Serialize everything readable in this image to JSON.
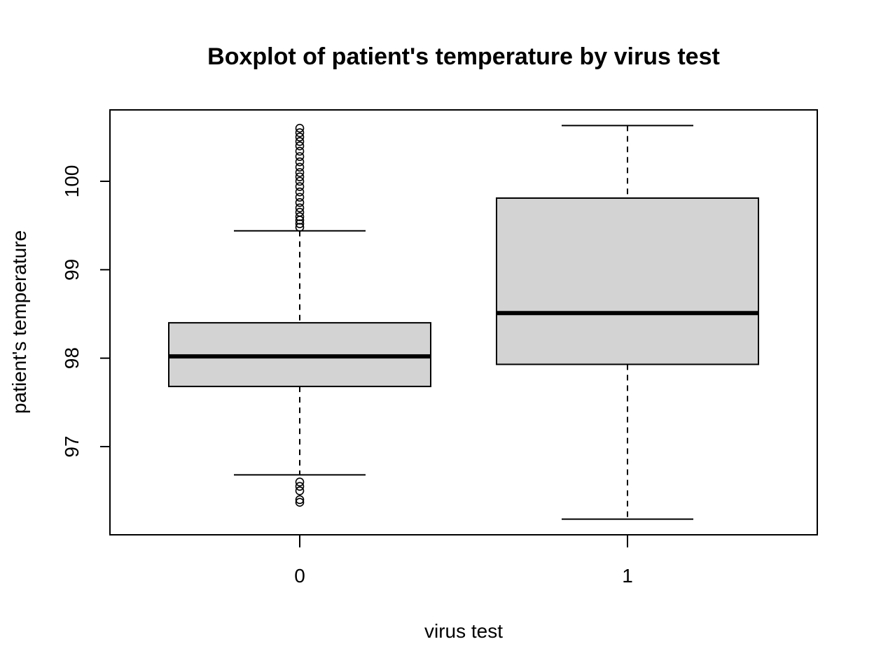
{
  "chart_data": {
    "type": "boxplot",
    "title": "Boxplot of patient's temperature by virus test",
    "xlabel": "virus test",
    "ylabel": "patient's temperature",
    "categories": [
      "0",
      "1"
    ],
    "yticks": [
      97,
      98,
      99,
      100
    ],
    "ylim": [
      96.0,
      100.8
    ],
    "grid": false,
    "legend": "none",
    "colors": {
      "box_fill": "#d3d3d3",
      "stroke": "#000000"
    },
    "boxes": [
      {
        "category": "0",
        "whisker_low": 96.68,
        "q1": 97.68,
        "median": 98.02,
        "q3": 98.4,
        "whisker_high": 99.44,
        "outliers": [
          96.4,
          96.37,
          96.5,
          96.55,
          96.6,
          99.48,
          99.52,
          99.56,
          99.6,
          99.65,
          99.7,
          99.76,
          99.82,
          99.88,
          99.94,
          100.0,
          100.05,
          100.1,
          100.16,
          100.22,
          100.28,
          100.34,
          100.4,
          100.45,
          100.5,
          100.55,
          100.6
        ]
      },
      {
        "category": "1",
        "whisker_low": 96.18,
        "q1": 97.93,
        "median": 98.51,
        "q3": 99.81,
        "whisker_high": 100.63,
        "outliers": []
      }
    ]
  }
}
